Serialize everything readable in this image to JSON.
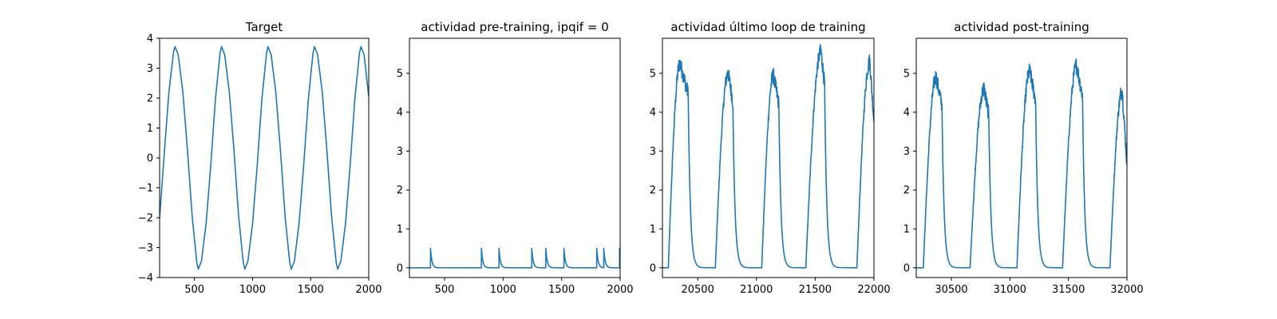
{
  "chart_data": [
    {
      "type": "line",
      "title": "Target",
      "xlim": [
        200,
        2000
      ],
      "ylim": [
        -4,
        4
      ],
      "xticks": [
        500,
        1000,
        1500,
        2000
      ],
      "yticks": [
        -4,
        -3,
        -2,
        -1,
        0,
        1,
        2,
        3,
        4
      ],
      "xtick_labels": [
        "500",
        "1000",
        "1500",
        "2000"
      ],
      "ytick_labels": [
        "−4",
        "−3",
        "−2",
        "−1",
        "0",
        "1",
        "2",
        "3",
        "4"
      ],
      "series": [
        {
          "x": [
            200,
            240,
            280,
            320,
            333,
            360,
            400,
            440,
            480,
            520,
            533,
            560,
            600,
            640,
            680,
            720,
            733,
            760,
            800,
            840,
            880,
            920,
            933,
            960,
            1000,
            1040,
            1080,
            1120,
            1133,
            1160,
            1200,
            1240,
            1280,
            1320,
            1333,
            1360,
            1400,
            1440,
            1480,
            1520,
            1533,
            1560,
            1600,
            1640,
            1680,
            1720,
            1733,
            1760,
            1800,
            1840,
            1880,
            1920,
            1933,
            1960,
            2000
          ],
          "y": [
            -2.0,
            0.15,
            2.2,
            3.55,
            3.72,
            3.45,
            2.2,
            0.25,
            -1.95,
            -3.5,
            -3.72,
            -3.45,
            -2.2,
            -0.25,
            1.95,
            3.5,
            3.72,
            3.45,
            2.2,
            0.25,
            -1.95,
            -3.5,
            -3.72,
            -3.45,
            -2.2,
            -0.25,
            1.95,
            3.5,
            3.72,
            3.45,
            2.2,
            0.25,
            -1.95,
            -3.5,
            -3.72,
            -3.45,
            -2.2,
            -0.25,
            1.95,
            3.5,
            3.72,
            3.45,
            2.2,
            0.25,
            -1.95,
            -3.5,
            -3.72,
            -3.45,
            -2.2,
            -0.25,
            1.95,
            3.5,
            3.72,
            3.45,
            2.05
          ]
        }
      ]
    },
    {
      "type": "line",
      "title": "actividad pre-training, ipqif = 0",
      "xlim": [
        200,
        2000
      ],
      "ylim": [
        -0.25,
        5.9
      ],
      "xticks": [
        500,
        1000,
        1500,
        2000
      ],
      "yticks": [
        0,
        1,
        2,
        3,
        4,
        5
      ],
      "xtick_labels": [
        "500",
        "1000",
        "1500",
        "2000"
      ],
      "ytick_labels": [
        "0",
        "1",
        "2",
        "3",
        "4",
        "5"
      ],
      "spike_times": [
        380,
        815,
        965,
        1245,
        1365,
        1520,
        1800,
        1860,
        1995
      ],
      "spike_peak": 0.5,
      "decay_tau": 12
    },
    {
      "type": "line",
      "title": "actividad último loop de training",
      "xlim": [
        20200,
        22000
      ],
      "ylim": [
        -0.25,
        5.9
      ],
      "xticks": [
        20500,
        21000,
        21500,
        22000
      ],
      "yticks": [
        0,
        1,
        2,
        3,
        4,
        5
      ],
      "xtick_labels": [
        "20500",
        "21000",
        "21500",
        "22000"
      ],
      "ytick_labels": [
        "0",
        "1",
        "2",
        "3",
        "4",
        "5"
      ],
      "bursts": [
        {
          "start": 20250,
          "peak_x": 20350,
          "peak_y": 5.25,
          "end": 20420
        },
        {
          "start": 20650,
          "peak_x": 20760,
          "peak_y": 5.0,
          "end": 20800
        },
        {
          "start": 21045,
          "peak_x": 21145,
          "peak_y": 4.95,
          "end": 21190
        },
        {
          "start": 21420,
          "peak_x": 21550,
          "peak_y": 5.55,
          "end": 21580
        },
        {
          "start": 21855,
          "peak_x": 21965,
          "peak_y": 5.3,
          "end": 22000
        }
      ],
      "end_value": 3.75
    },
    {
      "type": "line",
      "title": "actividad post-training",
      "xlim": [
        30200,
        32000
      ],
      "ylim": [
        -0.25,
        5.9
      ],
      "xticks": [
        30500,
        31000,
        31500,
        32000
      ],
      "yticks": [
        0,
        1,
        2,
        3,
        4,
        5
      ],
      "xtick_labels": [
        "30500",
        "31000",
        "31500",
        "32000"
      ],
      "ytick_labels": [
        "0",
        "1",
        "2",
        "3",
        "4",
        "5"
      ],
      "bursts": [
        {
          "start": 30260,
          "peak_x": 30370,
          "peak_y": 4.9,
          "end": 30420
        },
        {
          "start": 30660,
          "peak_x": 30780,
          "peak_y": 4.6,
          "end": 30820
        },
        {
          "start": 31060,
          "peak_x": 31170,
          "peak_y": 5.05,
          "end": 31220
        },
        {
          "start": 31450,
          "peak_x": 31570,
          "peak_y": 5.2,
          "end": 31620
        },
        {
          "start": 31855,
          "peak_x": 31960,
          "peak_y": 4.55,
          "end": 32000
        }
      ],
      "end_value": 2.65
    }
  ]
}
